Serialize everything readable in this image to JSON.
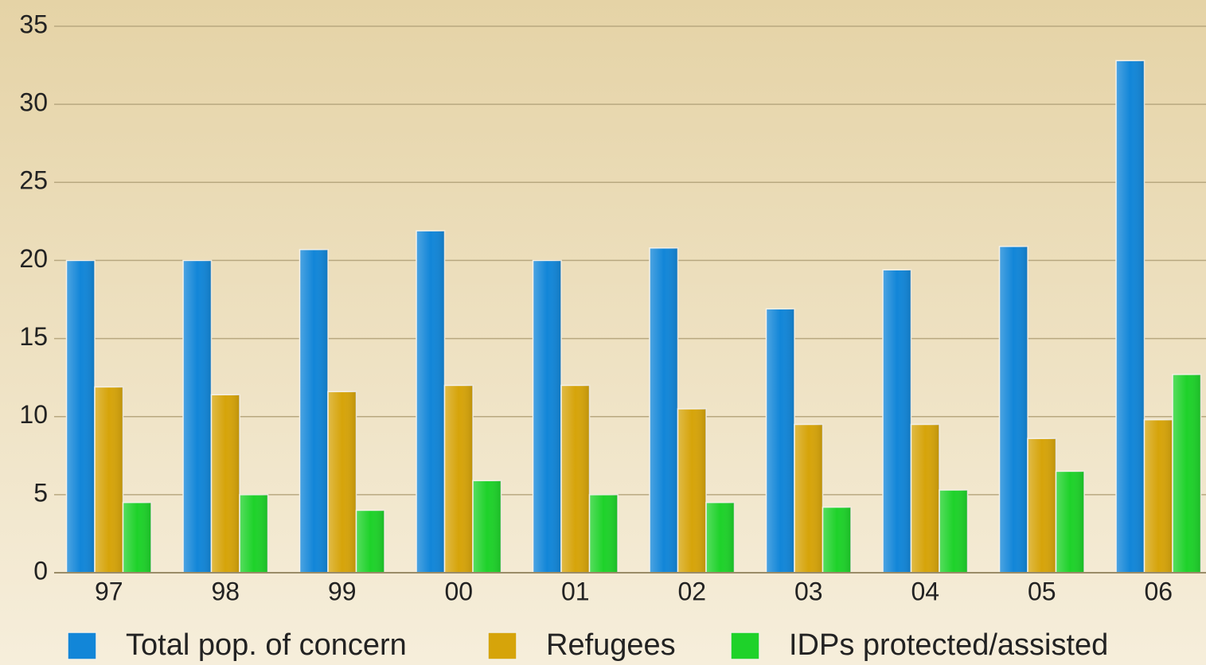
{
  "chart_data": {
    "type": "bar",
    "categories": [
      "97",
      "98",
      "99",
      "00",
      "01",
      "02",
      "03",
      "04",
      "05",
      "06"
    ],
    "series": [
      {
        "name": "Total pop. of concern",
        "color": "#1286d8",
        "values": [
          20,
          20,
          20.7,
          21.9,
          20,
          20.8,
          16.9,
          19.4,
          20.9,
          32.8
        ]
      },
      {
        "name": "Refugees",
        "color": "#d6a40a",
        "values": [
          11.9,
          11.4,
          11.6,
          12,
          12,
          10.5,
          9.5,
          9.5,
          8.6,
          9.8
        ]
      },
      {
        "name": "IDPs protected/assisted",
        "color": "#1ed22a",
        "values": [
          4.5,
          5,
          4,
          5.9,
          5,
          4.5,
          4.2,
          5.3,
          6.5,
          12.7
        ]
      }
    ],
    "ylim": [
      0,
      35
    ],
    "yticks": [
      0,
      5,
      10,
      15,
      20,
      25,
      30,
      35
    ],
    "grid": true,
    "legend": "bottom"
  }
}
